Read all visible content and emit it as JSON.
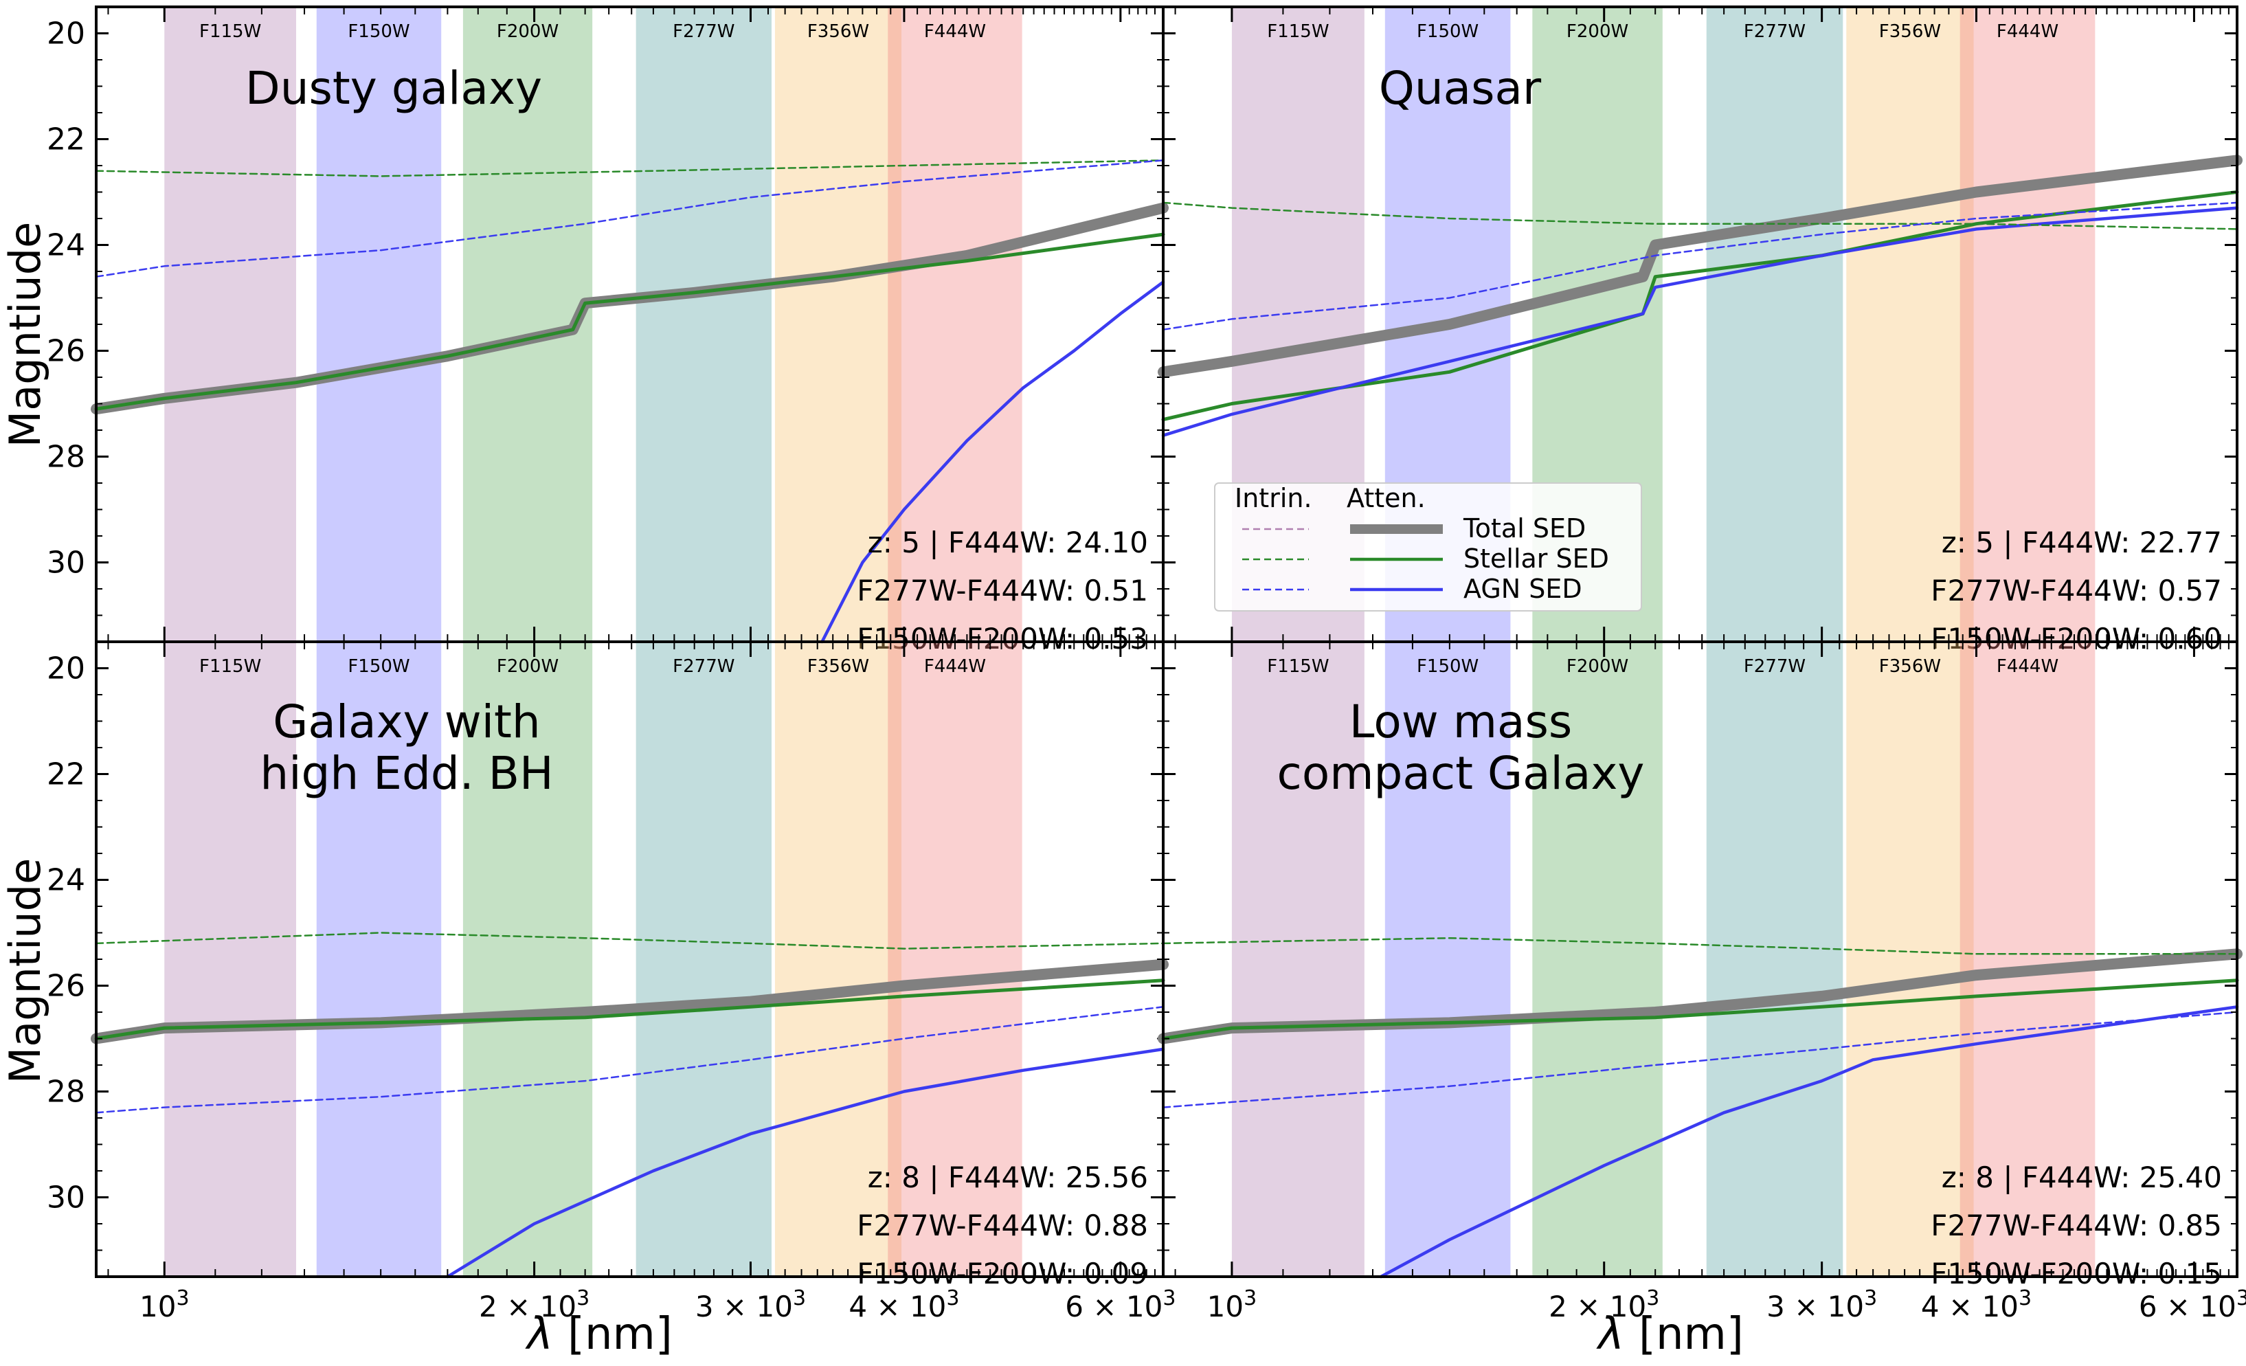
{
  "figure": {
    "ylabel": "Magntiude",
    "xlabel_symbol": "λ",
    "xlabel_unit": "[nm]",
    "x_tick_labels": [
      {
        "value": 1000,
        "base": "10",
        "exp": "3"
      },
      {
        "value": 2000,
        "base": "2 × 10",
        "exp": "3"
      },
      {
        "value": 3000,
        "base": "3 × 10",
        "exp": "3"
      },
      {
        "value": 4000,
        "base": "4 × 10",
        "exp": "3"
      },
      {
        "value": 6000,
        "base": "6 × 10",
        "exp": "3"
      }
    ],
    "y_ticks": [
      20,
      22,
      24,
      26,
      28,
      30
    ],
    "colors": {
      "F115W": "#b07ab0",
      "F150W": "#6b6bff",
      "F200W": "#5aaa5a",
      "F277W": "#4f9f9f",
      "F356W": "#f5c06b",
      "F444W": "#f07a7a",
      "total": "#808080",
      "stellar": "#2a8a2a",
      "agn": "#3b3bf0"
    }
  },
  "legend": {
    "header_intrinsic": "Intrin.",
    "header_attenuated": "Atten.",
    "entries": [
      {
        "key": "total",
        "label": "Total SED"
      },
      {
        "key": "stellar",
        "label": "Stellar SED"
      },
      {
        "key": "agn",
        "label": "AGN SED"
      }
    ]
  },
  "chart_data": [
    {
      "type": "line",
      "title": "Dusty galaxy",
      "xscale": "log",
      "xlim": [
        880,
        6500
      ],
      "ylim": [
        31.5,
        19.5
      ],
      "filters": [
        {
          "name": "F115W",
          "range": [
            1000,
            1280
          ]
        },
        {
          "name": "F150W",
          "range": [
            1330,
            1680
          ]
        },
        {
          "name": "F200W",
          "range": [
            1750,
            2230
          ]
        },
        {
          "name": "F277W",
          "range": [
            2420,
            3120
          ]
        },
        {
          "name": "F356W",
          "range": [
            3140,
            3980
          ]
        },
        {
          "name": "F444W",
          "range": [
            3880,
            4990
          ]
        }
      ],
      "annotations": [
        "z: 5 | F444W: 24.10",
        "F277W-F444W: 0.51",
        "F150W-F200W: 0.53"
      ],
      "series": [
        {
          "name": "Total SED (attenuated)",
          "key": "total",
          "style": "thick",
          "x": [
            880,
            1000,
            1280,
            1700,
            2150,
            2200,
            2700,
            3500,
            4500,
            6500
          ],
          "y": [
            27.1,
            26.9,
            26.6,
            26.1,
            25.6,
            25.1,
            24.9,
            24.6,
            24.2,
            23.3
          ]
        },
        {
          "name": "Stellar SED (attenuated)",
          "key": "stellar",
          "style": "solid",
          "x": [
            880,
            1000,
            1280,
            1700,
            2150,
            2200,
            2700,
            3500,
            4500,
            6500
          ],
          "y": [
            27.1,
            26.9,
            26.6,
            26.1,
            25.6,
            25.1,
            24.9,
            24.6,
            24.3,
            23.8
          ]
        },
        {
          "name": "AGN SED (attenuated)",
          "key": "agn",
          "style": "solid",
          "x": [
            3430,
            3700,
            4000,
            4500,
            5000,
            5500,
            6000,
            6500
          ],
          "y": [
            31.5,
            30.0,
            29.0,
            27.7,
            26.7,
            26.0,
            25.3,
            24.7
          ]
        },
        {
          "name": "Stellar SED (intrinsic)",
          "key": "stellar",
          "style": "dashed",
          "x": [
            880,
            1500,
            2500,
            4000,
            6500
          ],
          "y": [
            22.6,
            22.7,
            22.6,
            22.5,
            22.4
          ]
        },
        {
          "name": "AGN SED (intrinsic)",
          "key": "agn",
          "style": "dashed",
          "x": [
            880,
            1000,
            1500,
            2200,
            3000,
            4000,
            6500
          ],
          "y": [
            24.6,
            24.4,
            24.1,
            23.6,
            23.1,
            22.8,
            22.4
          ]
        }
      ]
    },
    {
      "type": "line",
      "title": "Quasar",
      "xscale": "log",
      "xlim": [
        880,
        6500
      ],
      "ylim": [
        31.5,
        19.5
      ],
      "filters": [
        {
          "name": "F115W",
          "range": [
            1000,
            1280
          ]
        },
        {
          "name": "F150W",
          "range": [
            1330,
            1680
          ]
        },
        {
          "name": "F200W",
          "range": [
            1750,
            2230
          ]
        },
        {
          "name": "F277W",
          "range": [
            2420,
            3120
          ]
        },
        {
          "name": "F356W",
          "range": [
            3140,
            3980
          ]
        },
        {
          "name": "F444W",
          "range": [
            3880,
            4990
          ]
        }
      ],
      "annotations": [
        "z: 5 | F444W: 22.77",
        "F277W-F444W: 0.57",
        "F150W-F200W: 0.60"
      ],
      "series": [
        {
          "name": "Total SED (attenuated)",
          "key": "total",
          "style": "thick",
          "x": [
            880,
            1000,
            1500,
            2150,
            2200,
            3000,
            4000,
            6500
          ],
          "y": [
            26.4,
            26.2,
            25.5,
            24.6,
            24.0,
            23.5,
            23.0,
            22.4
          ]
        },
        {
          "name": "Stellar SED (attenuated)",
          "key": "stellar",
          "style": "solid",
          "x": [
            880,
            1000,
            1500,
            2150,
            2200,
            3000,
            4000,
            6500
          ],
          "y": [
            27.3,
            27.0,
            26.4,
            25.3,
            24.6,
            24.2,
            23.6,
            23.0
          ]
        },
        {
          "name": "AGN SED (attenuated)",
          "key": "agn",
          "style": "solid",
          "x": [
            880,
            1000,
            1500,
            2150,
            2200,
            3000,
            4000,
            6500
          ],
          "y": [
            27.6,
            27.2,
            26.2,
            25.3,
            24.8,
            24.2,
            23.7,
            23.3
          ]
        },
        {
          "name": "Stellar SED (intrinsic)",
          "key": "stellar",
          "style": "dashed",
          "x": [
            880,
            1000,
            1500,
            2200,
            3000,
            4000,
            6500
          ],
          "y": [
            23.2,
            23.3,
            23.5,
            23.6,
            23.6,
            23.6,
            23.7
          ]
        },
        {
          "name": "AGN SED (intrinsic)",
          "key": "agn",
          "style": "dashed",
          "x": [
            880,
            1000,
            1500,
            2200,
            3000,
            4000,
            6500
          ],
          "y": [
            25.6,
            25.4,
            25.0,
            24.2,
            23.8,
            23.5,
            23.2
          ]
        }
      ]
    },
    {
      "type": "line",
      "title": "Galaxy with high Edd. BH",
      "xscale": "log",
      "xlim": [
        880,
        6500
      ],
      "ylim": [
        31.5,
        19.5
      ],
      "filters": [
        {
          "name": "F115W",
          "range": [
            1000,
            1280
          ]
        },
        {
          "name": "F150W",
          "range": [
            1330,
            1680
          ]
        },
        {
          "name": "F200W",
          "range": [
            1750,
            2230
          ]
        },
        {
          "name": "F277W",
          "range": [
            2420,
            3120
          ]
        },
        {
          "name": "F356W",
          "range": [
            3140,
            3980
          ]
        },
        {
          "name": "F444W",
          "range": [
            3880,
            4990
          ]
        }
      ],
      "annotations": [
        "z: 8 | F444W: 25.56",
        "F277W-F444W: 0.88",
        "F150W-F200W: 0.09"
      ],
      "series": [
        {
          "name": "Total SED (attenuated)",
          "key": "total",
          "style": "thick",
          "x": [
            880,
            1000,
            1500,
            2200,
            3000,
            4000,
            6500
          ],
          "y": [
            27.0,
            26.8,
            26.7,
            26.5,
            26.3,
            26.0,
            25.6
          ]
        },
        {
          "name": "Stellar SED (attenuated)",
          "key": "stellar",
          "style": "solid",
          "x": [
            880,
            1000,
            1500,
            2200,
            3000,
            4000,
            6500
          ],
          "y": [
            27.0,
            26.8,
            26.7,
            26.6,
            26.4,
            26.2,
            25.9
          ]
        },
        {
          "name": "AGN SED (attenuated)",
          "key": "agn",
          "style": "solid",
          "x": [
            1700,
            2000,
            2500,
            3000,
            4000,
            5000,
            6500
          ],
          "y": [
            31.5,
            30.5,
            29.5,
            28.8,
            28.0,
            27.6,
            27.2
          ]
        },
        {
          "name": "Stellar SED (intrinsic)",
          "key": "stellar",
          "style": "dashed",
          "x": [
            880,
            1500,
            2200,
            3000,
            4000,
            6500
          ],
          "y": [
            25.2,
            25.0,
            25.1,
            25.2,
            25.3,
            25.2
          ]
        },
        {
          "name": "AGN SED (intrinsic)",
          "key": "agn",
          "style": "dashed",
          "x": [
            880,
            1000,
            1500,
            2200,
            3000,
            4000,
            6500
          ],
          "y": [
            28.4,
            28.3,
            28.1,
            27.8,
            27.4,
            27.0,
            26.4
          ]
        }
      ]
    },
    {
      "type": "line",
      "title": "Low mass compact Galaxy",
      "xscale": "log",
      "xlim": [
        880,
        6500
      ],
      "ylim": [
        31.5,
        19.5
      ],
      "filters": [
        {
          "name": "F115W",
          "range": [
            1000,
            1280
          ]
        },
        {
          "name": "F150W",
          "range": [
            1330,
            1680
          ]
        },
        {
          "name": "F200W",
          "range": [
            1750,
            2230
          ]
        },
        {
          "name": "F277W",
          "range": [
            2420,
            3120
          ]
        },
        {
          "name": "F356W",
          "range": [
            3140,
            3980
          ]
        },
        {
          "name": "F444W",
          "range": [
            3880,
            4990
          ]
        }
      ],
      "annotations": [
        "z: 8 | F444W: 25.40",
        "F277W-F444W: 0.85",
        "F150W-F200W: 0.15"
      ],
      "series": [
        {
          "name": "Total SED (attenuated)",
          "key": "total",
          "style": "thick",
          "x": [
            880,
            1000,
            1500,
            2200,
            3000,
            4000,
            6500
          ],
          "y": [
            27.0,
            26.8,
            26.7,
            26.5,
            26.2,
            25.8,
            25.4
          ]
        },
        {
          "name": "Stellar SED (attenuated)",
          "key": "stellar",
          "style": "solid",
          "x": [
            880,
            1000,
            1500,
            2200,
            3000,
            4000,
            6500
          ],
          "y": [
            27.0,
            26.8,
            26.7,
            26.6,
            26.4,
            26.2,
            25.9
          ]
        },
        {
          "name": "AGN SED (attenuated)",
          "key": "agn",
          "style": "solid",
          "x": [
            1320,
            1500,
            2000,
            2500,
            3000,
            3300,
            4000,
            6500
          ],
          "y": [
            31.5,
            30.8,
            29.4,
            28.4,
            27.8,
            27.4,
            27.1,
            26.4
          ]
        },
        {
          "name": "Stellar SED (intrinsic)",
          "key": "stellar",
          "style": "dashed",
          "x": [
            880,
            1500,
            2200,
            3000,
            4000,
            6500
          ],
          "y": [
            25.2,
            25.1,
            25.2,
            25.3,
            25.4,
            25.4
          ]
        },
        {
          "name": "AGN SED (intrinsic)",
          "key": "agn",
          "style": "dashed",
          "x": [
            880,
            1000,
            1500,
            2200,
            3000,
            4000,
            6500
          ],
          "y": [
            28.3,
            28.2,
            27.9,
            27.5,
            27.2,
            26.9,
            26.5
          ]
        }
      ]
    }
  ]
}
